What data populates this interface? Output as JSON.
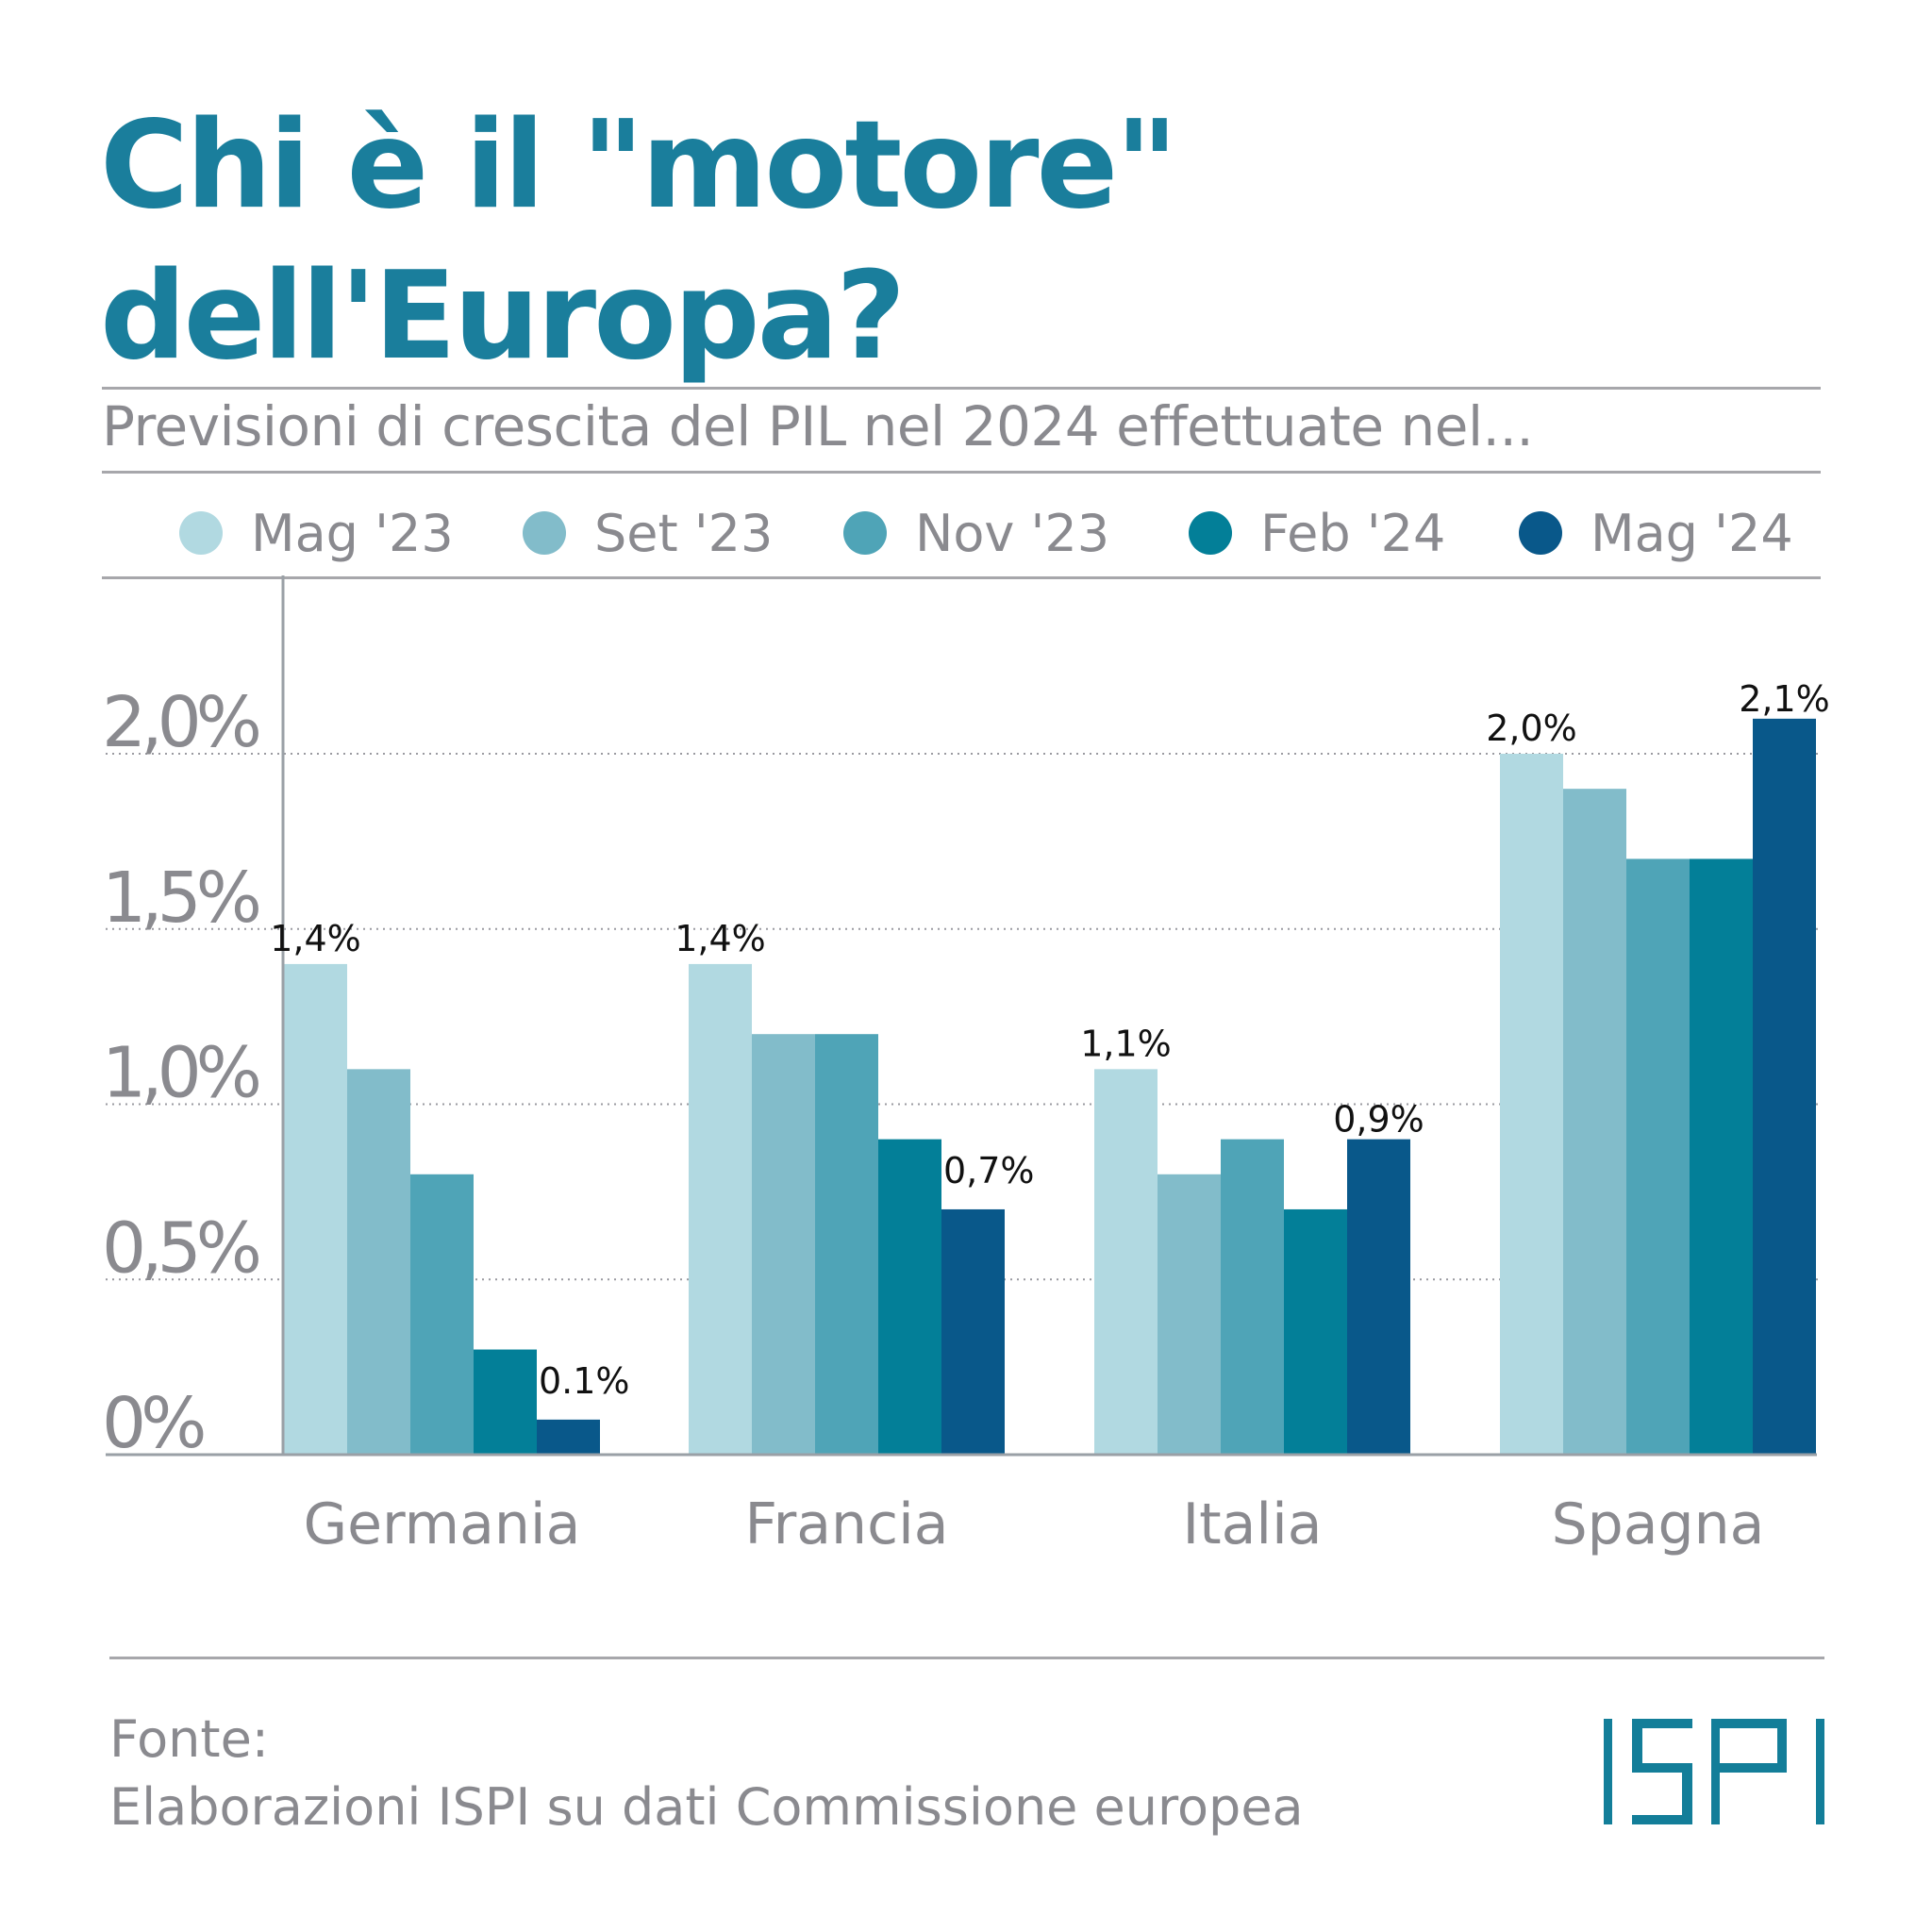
{
  "header": {
    "title_line1": "Chi è il \"motore\"",
    "title_line2": "dell'Europa?",
    "subtitle": "Previsioni di crescita del PIL nel 2024 effettuate nel..."
  },
  "colors": {
    "title": "#1a7e9c",
    "text_gray": "#8a8a8f",
    "logo": "#137e99"
  },
  "legend": [
    {
      "label": "Mag '23",
      "color": "#b1d9e1"
    },
    {
      "label": "Set '23",
      "color": "#82bcca"
    },
    {
      "label": "Nov '23",
      "color": "#4fa4b7"
    },
    {
      "label": "Feb '24",
      "color": "#037f98"
    },
    {
      "label": "Mag '24",
      "color": "#09588a"
    }
  ],
  "chart_data": {
    "type": "bar",
    "title": "Previsioni di crescita del PIL nel 2024 effettuate nel...",
    "xlabel": "",
    "ylabel": "",
    "categories": [
      "Germania",
      "Francia",
      "Italia",
      "Spagna"
    ],
    "series": [
      {
        "name": "Mag '23",
        "color": "#b1d9e1",
        "values": [
          1.4,
          1.4,
          1.1,
          2.0
        ]
      },
      {
        "name": "Set '23",
        "color": "#82bcca",
        "values": [
          1.1,
          1.2,
          0.8,
          1.9
        ]
      },
      {
        "name": "Nov '23",
        "color": "#4fa4b7",
        "values": [
          0.8,
          1.2,
          0.9,
          1.7
        ]
      },
      {
        "name": "Feb '24",
        "color": "#037f98",
        "values": [
          0.3,
          0.9,
          0.7,
          1.7
        ]
      },
      {
        "name": "Mag '24",
        "color": "#09588a",
        "values": [
          0.1,
          0.7,
          0.9,
          2.1
        ]
      }
    ],
    "data_labels": [
      {
        "category": "Germania",
        "series": "Mag '23",
        "text": "1,4%"
      },
      {
        "category": "Germania",
        "series": "Mag '24",
        "text": "0.1%"
      },
      {
        "category": "Francia",
        "series": "Mag '23",
        "text": "1,4%"
      },
      {
        "category": "Francia",
        "series": "Mag '24",
        "text": "0,7%"
      },
      {
        "category": "Italia",
        "series": "Mag '23",
        "text": "1,1%"
      },
      {
        "category": "Italia",
        "series": "Mag '24",
        "text": "0,9%"
      },
      {
        "category": "Spagna",
        "series": "Mag '23",
        "text": "2,0%"
      },
      {
        "category": "Spagna",
        "series": "Mag '24",
        "text": "2,1%"
      }
    ],
    "yticks": [
      {
        "value": 0,
        "label": "0%"
      },
      {
        "value": 0.5,
        "label": "0,5%"
      },
      {
        "value": 1.0,
        "label": "1,0%"
      },
      {
        "value": 1.5,
        "label": "1,5%"
      },
      {
        "value": 2.0,
        "label": "2,0%"
      }
    ],
    "ylim": [
      0,
      2.5
    ],
    "grid": "dotted horizontal",
    "legend_position": "top"
  },
  "footer": {
    "source_label": "Fonte:",
    "source_text": "Elaborazioni ISPI su dati Commissione europea",
    "logo_text": "ISPI"
  }
}
